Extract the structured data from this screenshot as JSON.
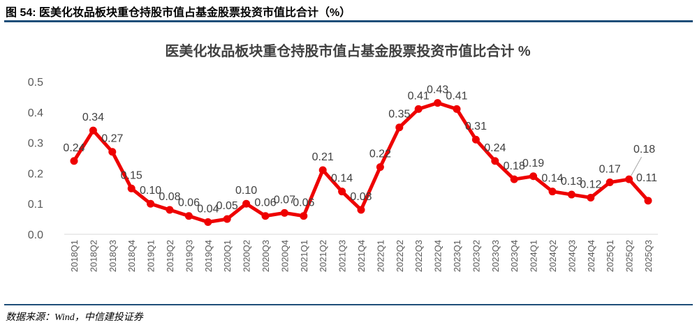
{
  "figure_title": "图 54: 医美化妆品板块重仓持股市值占基金股票投资市值比合计（%）",
  "source": "数据来源：Wind，中信建投证券",
  "colors": {
    "line": "#ee0000",
    "rule": "#1f4e79"
  },
  "chart_data": {
    "type": "line",
    "title": "医美化妆品板块重仓持股市值占基金股票投资市值比合计 %",
    "categories": [
      "2018Q1",
      "2018Q2",
      "2018Q3",
      "2018Q4",
      "2019Q1",
      "2019Q2",
      "2019Q3",
      "2019Q4",
      "2020Q1",
      "2020Q2",
      "2020Q3",
      "2020Q4",
      "2021Q1",
      "2021Q2",
      "2021Q3",
      "2021Q4",
      "2022Q1",
      "2022Q2",
      "2022Q3",
      "2022Q4",
      "2023Q1",
      "2023Q2",
      "2023Q3",
      "2023Q4",
      "2024Q1",
      "2024Q2",
      "2024Q3",
      "2024Q4",
      "2025Q1",
      "2025Q2",
      "2025Q3"
    ],
    "values": [
      0.24,
      0.34,
      0.27,
      0.15,
      0.1,
      0.08,
      0.06,
      0.04,
      0.05,
      0.1,
      0.06,
      0.07,
      0.06,
      0.21,
      0.14,
      0.08,
      0.22,
      0.35,
      0.41,
      0.43,
      0.41,
      0.31,
      0.24,
      0.18,
      0.19,
      0.14,
      0.13,
      0.12,
      0.17,
      0.18,
      0.11
    ],
    "labels": [
      "0.24",
      "0.34",
      "0.27",
      "0.15",
      "0.10",
      "0.08",
      "0.06",
      "0.04",
      "0.05",
      "0.10",
      "0.06",
      "0.07",
      "0.06",
      "0.21",
      "0.14",
      "0.08",
      "0.22",
      "0.35",
      "0.41",
      "0.43",
      "0.41",
      "0.31",
      "0.24",
      "0.18",
      "0.19",
      "0.14",
      "0.13",
      "0.12",
      "0.17",
      "0.18",
      "0.11"
    ],
    "yticks": [
      "0.0",
      "0.1",
      "0.2",
      "0.3",
      "0.4",
      "0.5"
    ],
    "ylim": [
      0,
      0.5
    ],
    "grid": false,
    "legend": "none"
  }
}
